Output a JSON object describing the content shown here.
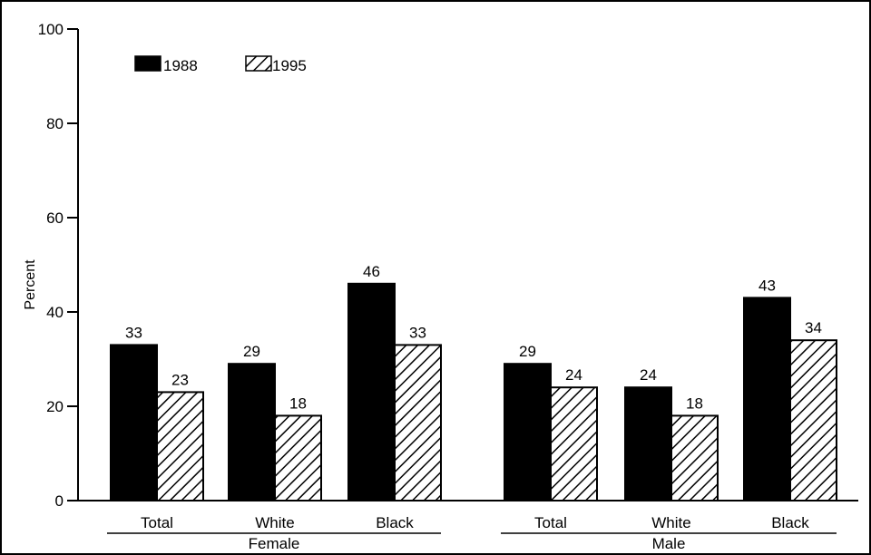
{
  "chart_data": {
    "type": "bar",
    "title": "",
    "xlabel": "",
    "ylabel": "Percent",
    "ylim": [
      0,
      100
    ],
    "yticks": [
      0,
      20,
      40,
      60,
      80,
      100
    ],
    "grid": false,
    "legend_position": "top-left",
    "groups": [
      {
        "name": "Female",
        "categories": [
          "Total",
          "White",
          "Black"
        ]
      },
      {
        "name": "Male",
        "categories": [
          "Total",
          "White",
          "Black"
        ]
      }
    ],
    "series": [
      {
        "name": "1988",
        "pattern": "solid",
        "color": "#000000",
        "values": [
          33,
          29,
          46,
          29,
          24,
          43
        ]
      },
      {
        "name": "1995",
        "pattern": "diagonal-hatch",
        "color": "#000000",
        "values": [
          23,
          18,
          33,
          24,
          18,
          34
        ]
      }
    ]
  }
}
